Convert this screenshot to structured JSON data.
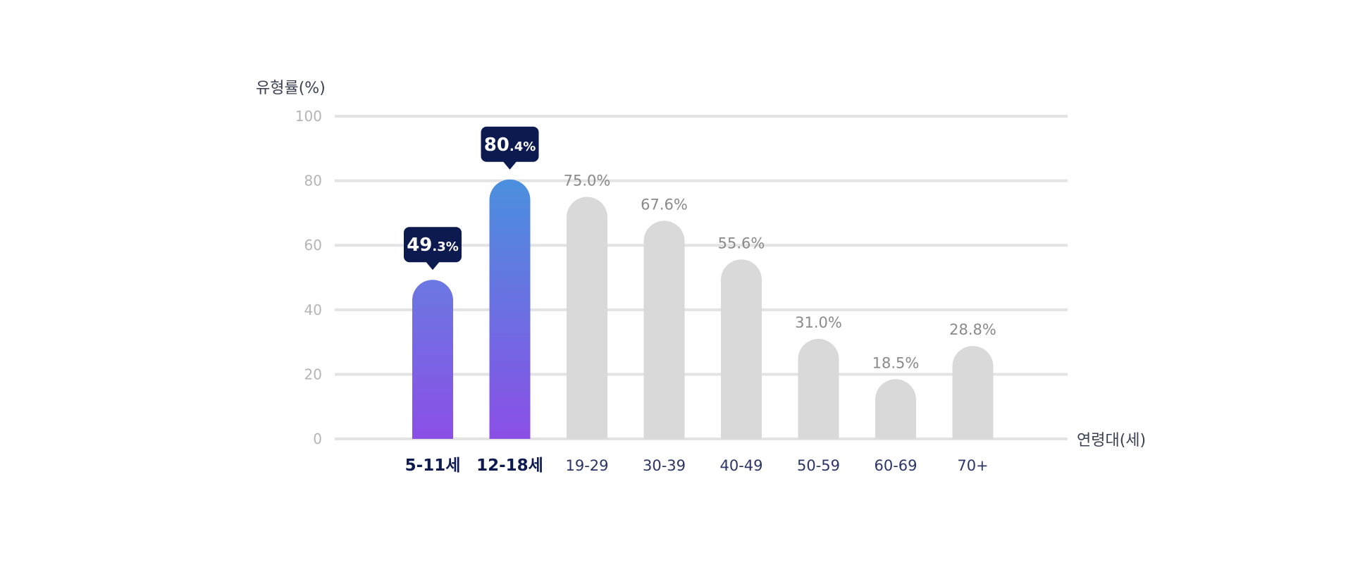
{
  "chart_data": {
    "type": "bar",
    "ylabel": "유형률(%)",
    "xlabel": "연령대(세)",
    "ylim": [
      0,
      100
    ],
    "yticks": [
      "0",
      "20",
      "40",
      "60",
      "80",
      "100"
    ],
    "grid": true,
    "categories": [
      "5-11세",
      "12-18세",
      "19-29",
      "30-39",
      "40-49",
      "50-59",
      "60-69",
      "70+"
    ],
    "values": [
      49.3,
      80.4,
      75.0,
      67.6,
      55.6,
      31.0,
      18.5,
      28.8
    ],
    "value_labels": [
      "49.3%",
      "80.4%",
      "75.0%",
      "67.6%",
      "55.6%",
      "31.0%",
      "18.5%",
      "28.8%"
    ],
    "highlighted": [
      true,
      true,
      false,
      false,
      false,
      false,
      false,
      false
    ],
    "colors": {
      "highlight_gradient_top_1": "#6f74e0",
      "highlight_gradient_top_2": "#4b8fde",
      "highlight_gradient_bottom": "#8b4fe6",
      "default_bar": "#d9d9d9",
      "tooltip_bg": "#0d1a4f",
      "grid": "#e3e3e3"
    }
  }
}
